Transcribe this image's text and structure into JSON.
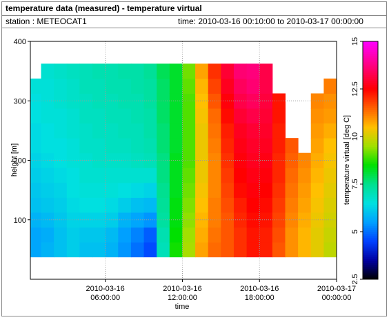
{
  "chart_data": {
    "type": "heatmap",
    "title": "temperature data (measured) - temperature virtual",
    "station": "station : METEOCAT1",
    "period": "time: 2010-03-16 00:10:00 to 2010-03-17 00:00:00",
    "xlabel": "time",
    "ylabel": "height [m]",
    "zlabel": "temperature virtual [deg C]",
    "xlim": [
      "2010-03-16T00:10:00",
      "2010-03-17T00:00:00"
    ],
    "xticks": [
      {
        "value": "2010-03-16T06:00:00",
        "label": [
          "2010-03-16",
          "06:00:00"
        ]
      },
      {
        "value": "2010-03-16T12:00:00",
        "label": [
          "2010-03-16",
          "12:00:00"
        ]
      },
      {
        "value": "2010-03-16T18:00:00",
        "label": [
          "2010-03-16",
          "18:00:00"
        ]
      },
      {
        "value": "2010-03-17T00:00:00",
        "label": [
          "2010-03-17",
          "00:00:00"
        ]
      }
    ],
    "ylim": [
      0,
      400
    ],
    "yticks": [
      100,
      200,
      300,
      400
    ],
    "zlim": [
      2.5,
      15
    ],
    "zticks": [
      2.5,
      5,
      7.5,
      10,
      12.5,
      15
    ],
    "grid": true,
    "colormap": [
      [
        2.5,
        "#000000"
      ],
      [
        3.5,
        "#0000a0"
      ],
      [
        4.5,
        "#0040ff"
      ],
      [
        5.5,
        "#00a0ff"
      ],
      [
        6.5,
        "#00e0e0"
      ],
      [
        7.5,
        "#00e090"
      ],
      [
        8.5,
        "#00e000"
      ],
      [
        9.5,
        "#a0e000"
      ],
      [
        10.5,
        "#ffc000"
      ],
      [
        11.5,
        "#ff6000"
      ],
      [
        12.5,
        "#ff0000"
      ],
      [
        13.75,
        "#ff0080"
      ],
      [
        15,
        "#ff00ff"
      ]
    ],
    "x": [
      "2010-03-16T00:30:00",
      "2010-03-16T01:30:00",
      "2010-03-16T02:30:00",
      "2010-03-16T03:30:00",
      "2010-03-16T04:30:00",
      "2010-03-16T05:30:00",
      "2010-03-16T06:30:00",
      "2010-03-16T07:30:00",
      "2010-03-16T08:30:00",
      "2010-03-16T09:30:00",
      "2010-03-16T10:30:00",
      "2010-03-16T11:30:00",
      "2010-03-16T12:30:00",
      "2010-03-16T13:30:00",
      "2010-03-16T14:30:00",
      "2010-03-16T15:30:00",
      "2010-03-16T16:30:00",
      "2010-03-16T17:30:00",
      "2010-03-16T18:30:00",
      "2010-03-16T19:30:00",
      "2010-03-16T20:30:00",
      "2010-03-16T21:30:00",
      "2010-03-16T22:30:00",
      "2010-03-16T23:30:00"
    ],
    "y": [
      50,
      75,
      100,
      125,
      150,
      175,
      200,
      225,
      250,
      275,
      300,
      325,
      350
    ],
    "z": [
      [
        5.6,
        5.6,
        5.8,
        6.0,
        6.1,
        6.2,
        6.3,
        6.4,
        6.4,
        6.5,
        6.5,
        6.6,
        null
      ],
      [
        5.8,
        5.7,
        5.9,
        6.1,
        6.2,
        6.3,
        6.4,
        6.5,
        6.5,
        6.6,
        6.6,
        6.6,
        6.7
      ],
      [
        6.0,
        6.0,
        6.1,
        6.2,
        6.3,
        6.4,
        6.5,
        6.5,
        6.6,
        6.6,
        6.7,
        6.7,
        6.8
      ],
      [
        6.2,
        6.2,
        6.3,
        6.4,
        6.5,
        6.5,
        6.6,
        6.6,
        6.7,
        6.7,
        6.8,
        6.8,
        6.9
      ],
      [
        6.0,
        6.1,
        6.3,
        6.5,
        6.6,
        6.7,
        6.7,
        6.8,
        6.8,
        6.9,
        6.9,
        7.0,
        7.0
      ],
      [
        6.0,
        6.1,
        6.3,
        6.5,
        6.6,
        6.7,
        6.8,
        6.8,
        6.9,
        6.9,
        7.0,
        7.0,
        7.1
      ],
      [
        5.8,
        5.9,
        6.2,
        6.4,
        6.6,
        6.7,
        6.8,
        6.9,
        6.9,
        7.0,
        7.0,
        7.1,
        7.1
      ],
      [
        5.4,
        5.5,
        5.8,
        6.2,
        6.5,
        6.7,
        6.8,
        6.9,
        7.0,
        7.0,
        7.1,
        7.1,
        7.2
      ],
      [
        5.0,
        5.2,
        5.6,
        6.0,
        6.4,
        6.7,
        6.9,
        7.0,
        7.0,
        7.1,
        7.1,
        7.2,
        7.2
      ],
      [
        4.6,
        4.8,
        5.4,
        5.9,
        6.3,
        6.7,
        7.0,
        7.1,
        7.2,
        7.2,
        7.3,
        7.3,
        7.4
      ],
      [
        7.0,
        7.1,
        7.3,
        7.4,
        7.5,
        7.6,
        7.6,
        7.7,
        7.7,
        7.8,
        7.8,
        7.8,
        7.9
      ],
      [
        8.6,
        8.5,
        8.4,
        8.4,
        8.3,
        8.3,
        8.3,
        8.2,
        8.2,
        8.2,
        8.2,
        8.2,
        8.2
      ],
      [
        9.6,
        9.5,
        9.4,
        9.3,
        9.2,
        9.1,
        9.0,
        9.0,
        9.0,
        9.0,
        9.0,
        9.1,
        9.2
      ],
      [
        10.8,
        10.7,
        10.6,
        10.5,
        10.4,
        10.3,
        10.3,
        10.3,
        10.3,
        10.4,
        10.5,
        10.6,
        10.8
      ],
      [
        11.4,
        11.3,
        11.2,
        11.2,
        11.1,
        11.1,
        11.1,
        11.2,
        11.3,
        11.4,
        11.6,
        11.8,
        12.0
      ],
      [
        11.6,
        11.6,
        11.6,
        11.7,
        11.8,
        11.9,
        12.0,
        12.1,
        12.2,
        12.4,
        12.6,
        12.8,
        13.0
      ],
      [
        12.0,
        12.0,
        12.1,
        12.2,
        12.4,
        12.5,
        12.6,
        12.7,
        12.8,
        13.0,
        13.2,
        13.4,
        13.6
      ],
      [
        12.3,
        12.3,
        12.4,
        12.5,
        12.6,
        12.7,
        12.8,
        12.9,
        13.0,
        13.2,
        13.4,
        13.6,
        13.7
      ],
      [
        12.2,
        12.2,
        12.3,
        12.4,
        12.5,
        12.6,
        12.7,
        12.8,
        12.9,
        13.0,
        13.1,
        13.2,
        13.2
      ],
      [
        11.6,
        11.7,
        11.8,
        11.9,
        12.0,
        12.1,
        12.1,
        12.2,
        12.2,
        12.3,
        12.3,
        null,
        null
      ],
      [
        11.0,
        11.0,
        11.1,
        11.2,
        11.3,
        11.4,
        11.5,
        11.6,
        null,
        null,
        null,
        null,
        null
      ],
      [
        10.6,
        10.6,
        10.7,
        10.8,
        10.9,
        11.0,
        11.1,
        null,
        null,
        null,
        null,
        null,
        null
      ],
      [
        10.2,
        10.2,
        10.3,
        10.4,
        10.5,
        10.6,
        10.7,
        10.8,
        10.9,
        11.0,
        11.1,
        null,
        null
      ],
      [
        9.8,
        9.9,
        10.0,
        10.1,
        10.2,
        10.3,
        10.4,
        10.5,
        10.7,
        10.9,
        11.0,
        11.2,
        null
      ]
    ]
  }
}
